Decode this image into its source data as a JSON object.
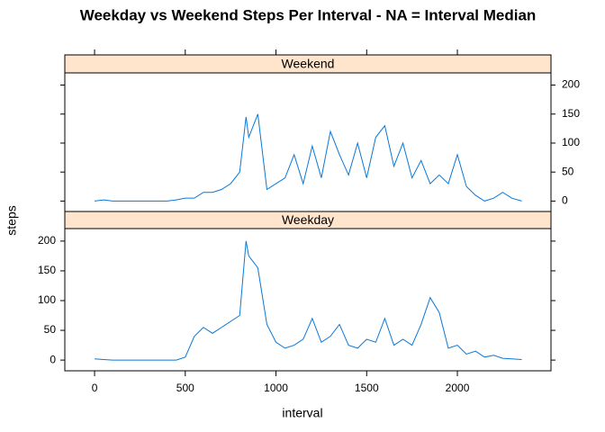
{
  "chart_data": {
    "type": "line",
    "title": "Weekday vs Weekend Steps Per Interval - NA = Interval Median",
    "xlabel": "interval",
    "ylabel": "steps",
    "xlim": [
      -164,
      2516
    ],
    "ylim": [
      -18,
      221
    ],
    "xticks": [
      0,
      500,
      1000,
      1500,
      2000
    ],
    "yticks": [
      0,
      50,
      100,
      150,
      200
    ],
    "strip_color": "#ffe5cc",
    "x": [
      0,
      50,
      100,
      150,
      200,
      250,
      300,
      350,
      400,
      450,
      500,
      550,
      600,
      650,
      700,
      750,
      800,
      835,
      850,
      900,
      950,
      1000,
      1050,
      1100,
      1150,
      1200,
      1250,
      1300,
      1350,
      1400,
      1450,
      1500,
      1550,
      1600,
      1650,
      1700,
      1750,
      1800,
      1850,
      1900,
      1950,
      2000,
      2050,
      2100,
      2150,
      2200,
      2250,
      2300,
      2355
    ],
    "series": [
      {
        "name": "Weekend",
        "color": "#0a78d8",
        "values": [
          0,
          2,
          0,
          0,
          0,
          0,
          0,
          0,
          0,
          2,
          5,
          5,
          15,
          15,
          20,
          30,
          50,
          145,
          110,
          150,
          20,
          30,
          40,
          80,
          30,
          95,
          40,
          120,
          80,
          45,
          100,
          40,
          110,
          130,
          60,
          100,
          40,
          70,
          30,
          45,
          30,
          80,
          25,
          10,
          0,
          5,
          15,
          5,
          0
        ]
      },
      {
        "name": "Weekday",
        "color": "#0a78d8",
        "values": [
          2,
          1,
          0,
          0,
          0,
          0,
          0,
          0,
          0,
          0,
          5,
          40,
          55,
          45,
          55,
          65,
          75,
          200,
          175,
          155,
          60,
          30,
          20,
          25,
          35,
          70,
          30,
          40,
          60,
          25,
          20,
          35,
          30,
          70,
          25,
          35,
          25,
          60,
          105,
          80,
          20,
          25,
          10,
          15,
          5,
          8,
          3,
          2,
          1
        ]
      }
    ]
  }
}
